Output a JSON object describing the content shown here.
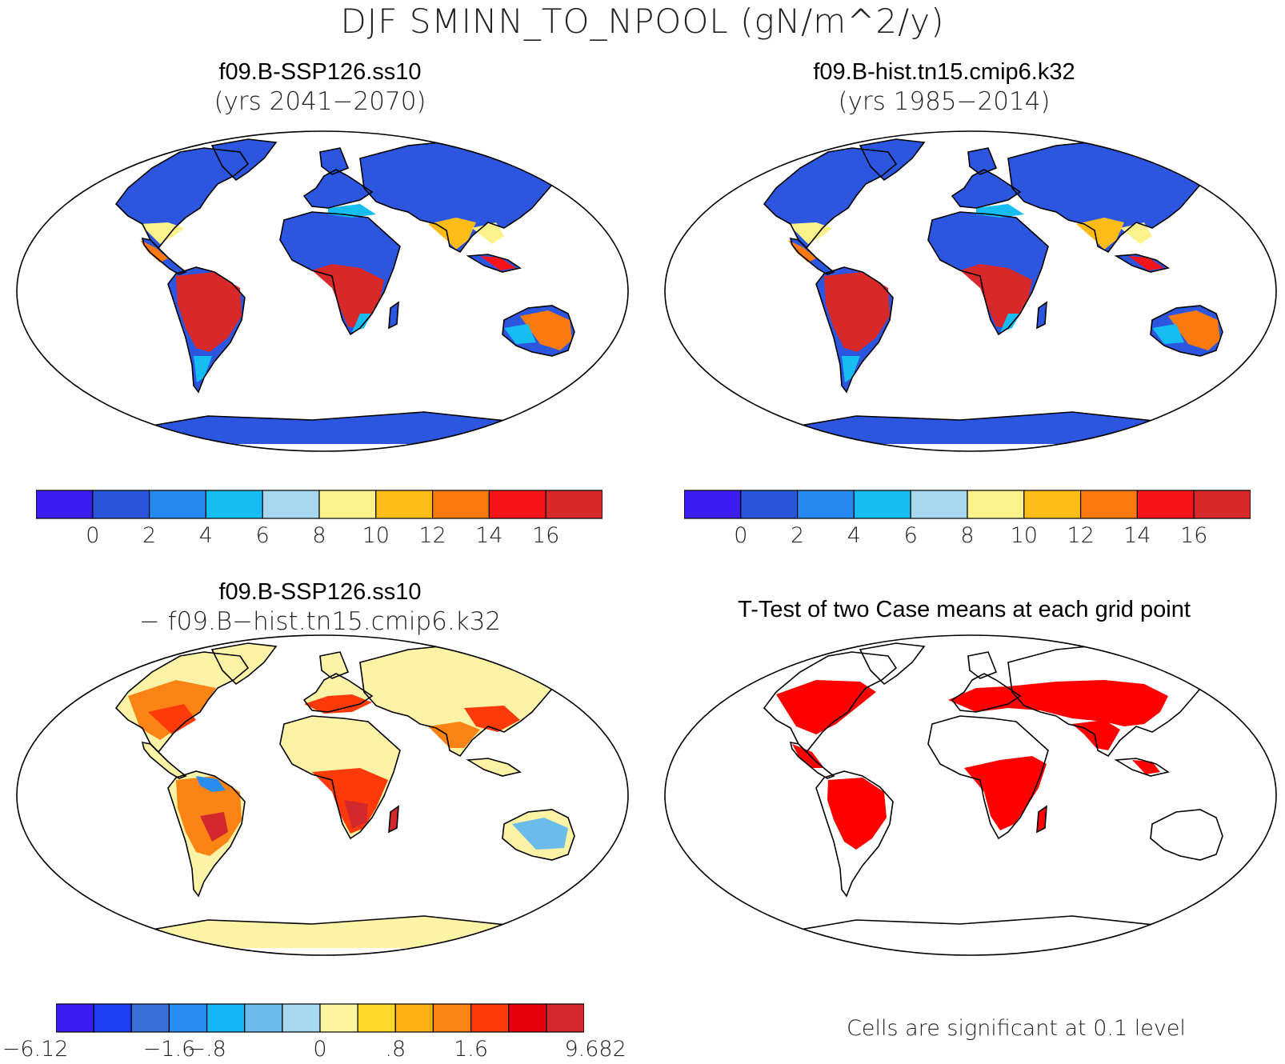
{
  "title": "DJF SMINN_TO_NPOOL (gN/m^2/y)",
  "panels": {
    "top_left": {
      "title_bold": "f09.B-SSP126.ss10",
      "title_light": "(yrs 2041−2070)"
    },
    "top_right": {
      "title_bold": "f09.B-hist.tn15.cmip6.k32",
      "title_light": "(yrs 1985−2014)"
    },
    "bottom_left": {
      "title_bold": "f09.B-SSP126.ss10",
      "title_light": "− f09.B−hist.tn15.cmip6.k32"
    },
    "bottom_right": {
      "title_bold": "T-Test of two Case means at each grid point"
    }
  },
  "colorbars": {
    "abs": {
      "colors": [
        "#3b1df2",
        "#2b55d9",
        "#2489f0",
        "#16bdf2",
        "#a7d8f0",
        "#fbf28c",
        "#fdbc17",
        "#fb7a10",
        "#f5141a",
        "#d7282a"
      ],
      "labels": [
        "0",
        "2",
        "4",
        "6",
        "8",
        "10",
        "12",
        "14",
        "16"
      ]
    },
    "diff": {
      "colors": [
        "#3b1df2",
        "#1d3ef0",
        "#3a6fd9",
        "#2a8ef0",
        "#16b6f2",
        "#6bbcea",
        "#a7d8f0",
        "#fcf5a0",
        "#fdd82a",
        "#fdb016",
        "#fb8415",
        "#fc3a0a",
        "#e6000b",
        "#d3292d"
      ],
      "labels": [
        "−6.12",
        "−1.6",
        "−.8",
        "0",
        ".8",
        "1.6",
        "9.682"
      ]
    }
  },
  "significance_note": "Cells are significant at 0.1 level",
  "legend_colors": {
    "significant": "#ff0000",
    "land_base_abs": "#2c56e0",
    "land_base_diff": "#fcf3a6"
  }
}
